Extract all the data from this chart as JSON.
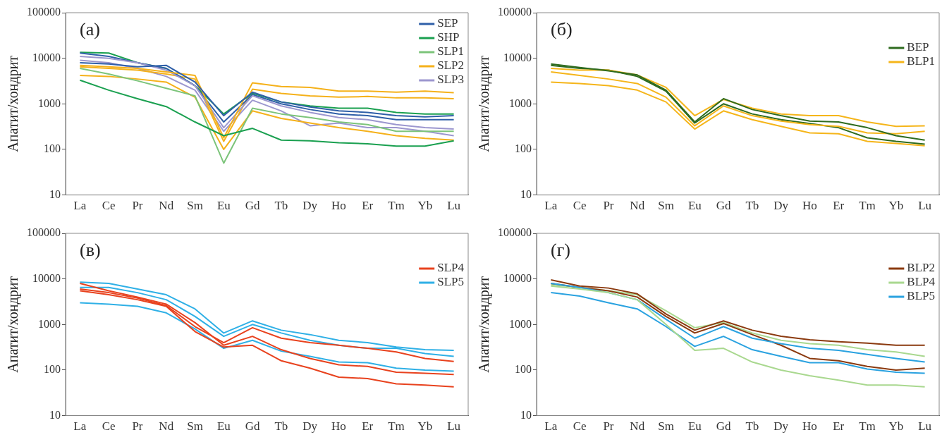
{
  "chart_data": [
    {
      "type": "line",
      "annotations": [
        "(a)"
      ],
      "ylabel": "Апатит/хондрит",
      "log": true,
      "ylim": [
        10,
        100000
      ],
      "yticks": [
        10,
        100,
        1000,
        10000,
        100000
      ],
      "grid": false,
      "legend": "top right",
      "marker": "none",
      "line_style": "solid",
      "categories": [
        "La",
        "Ce",
        "Pr",
        "Nd",
        "Sm",
        "Eu",
        "Gd",
        "Tb",
        "Dy",
        "Ho",
        "Er",
        "Tm",
        "Yb",
        "Lu"
      ],
      "series": [
        {
          "name": "SEP",
          "color": "#2f5fa8",
          "values": [
            8000,
            7500,
            6500,
            7000,
            3000,
            550,
            1800,
            1100,
            850,
            700,
            650,
            550,
            520,
            550
          ]
        },
        {
          "name": "SHP",
          "color": "#1aa050",
          "values": [
            3300,
            2000,
            1300,
            870,
            400,
            200,
            290,
            160,
            155,
            140,
            133,
            118,
            118,
            155
          ]
        },
        {
          "name": "SLP1",
          "color": "#7cc47a",
          "values": [
            6000,
            4500,
            3200,
            2200,
            1500,
            50,
            800,
            600,
            500,
            400,
            350,
            250,
            250,
            250
          ]
        },
        {
          "name": "SLP2",
          "color": "#f5b11a",
          "values": [
            7000,
            6500,
            6000,
            5000,
            4200,
            180,
            2900,
            2400,
            2300,
            1900,
            1900,
            1800,
            1900,
            1750
          ]
        },
        {
          "name": "SLP3",
          "color": "#9c97cf",
          "values": [
            11000,
            10000,
            8000,
            5500,
            2500,
            300,
            1500,
            900,
            650,
            500,
            450,
            350,
            300,
            280
          ]
        },
        {
          "color": "#2f5fa8",
          "values": [
            13000,
            11000,
            8000,
            6000,
            2500,
            400,
            1600,
            1000,
            750,
            600,
            550,
            450,
            450,
            450
          ]
        },
        {
          "color": "#1aa050",
          "values": [
            13500,
            13000,
            8000,
            6000,
            2500,
            600,
            1700,
            1100,
            900,
            800,
            800,
            650,
            600,
            600
          ]
        },
        {
          "color": "#f5b11a",
          "values": [
            4200,
            4000,
            3500,
            3000,
            1400,
            100,
            700,
            480,
            380,
            300,
            250,
            200,
            175,
            160
          ]
        },
        {
          "color": "#f5b11a",
          "values": [
            6500,
            6000,
            5500,
            4500,
            3500,
            150,
            2100,
            1700,
            1500,
            1400,
            1450,
            1350,
            1350,
            1300
          ]
        },
        {
          "color": "#9c97cf",
          "values": [
            9000,
            8000,
            6000,
            4000,
            2000,
            250,
            1200,
            700,
            330,
            380,
            300,
            300,
            250,
            200
          ]
        }
      ]
    },
    {
      "type": "line",
      "annotations": [
        "(б)"
      ],
      "ylabel": "Апатит/хондрит",
      "log": true,
      "ylim": [
        10,
        100000
      ],
      "yticks": [
        10,
        100,
        1000,
        10000,
        100000
      ],
      "grid": false,
      "legend": "top right",
      "marker": "none",
      "line_style": "solid",
      "categories": [
        "La",
        "Ce",
        "Pr",
        "Nd",
        "Sm",
        "Eu",
        "Gd",
        "Tb",
        "Dy",
        "Ho",
        "Er",
        "Tm",
        "Yb",
        "Lu"
      ],
      "series": [
        {
          "name": "BEP",
          "color": "#2e6b1f",
          "values": [
            7500,
            6300,
            5300,
            4300,
            2000,
            400,
            1300,
            750,
            550,
            420,
            400,
            300,
            200,
            160
          ]
        },
        {
          "name": "BLP1",
          "color": "#f5b51a",
          "values": [
            3000,
            2800,
            2500,
            2000,
            1100,
            280,
            700,
            450,
            320,
            230,
            220,
            150,
            135,
            120
          ]
        },
        {
          "color": "#f5b51a",
          "values": [
            6000,
            5500,
            5500,
            4300,
            2300,
            550,
            1250,
            800,
            600,
            550,
            550,
            400,
            320,
            330
          ]
        },
        {
          "color": "#f5b51a",
          "values": [
            5000,
            4200,
            3500,
            2800,
            1400,
            330,
            900,
            550,
            420,
            350,
            320,
            230,
            220,
            250
          ]
        },
        {
          "color": "#2e6b1f",
          "values": [
            7000,
            6000,
            5500,
            4000,
            1900,
            380,
            1000,
            600,
            450,
            370,
            300,
            180,
            150,
            130
          ]
        }
      ]
    },
    {
      "type": "line",
      "annotations": [
        "(в)"
      ],
      "ylabel": "Апатит/хондрит",
      "log": true,
      "ylim": [
        10,
        100000
      ],
      "yticks": [
        10,
        100,
        1000,
        10000,
        100000
      ],
      "grid": false,
      "legend": "top right",
      "marker": "none",
      "line_style": "solid",
      "categories": [
        "La",
        "Ce",
        "Pr",
        "Nd",
        "Sm",
        "Eu",
        "Gd",
        "Tb",
        "Dy",
        "Ho",
        "Er",
        "Tm",
        "Yb",
        "Lu"
      ],
      "series": [
        {
          "name": "SLP4",
          "color": "#e8421e",
          "values": [
            8000,
            5500,
            4000,
            2800,
            1100,
            350,
            550,
            280,
            180,
            130,
            120,
            90,
            85,
            80
          ]
        },
        {
          "name": "SLP5",
          "color": "#2fb0e6",
          "values": [
            8500,
            8000,
            6000,
            4500,
            2200,
            650,
            1200,
            750,
            600,
            450,
            400,
            320,
            280,
            270
          ]
        },
        {
          "color": "#e8421e",
          "values": [
            5500,
            4500,
            3500,
            2500,
            700,
            320,
            350,
            160,
            110,
            70,
            65,
            50,
            47,
            43
          ]
        },
        {
          "color": "#e8421e",
          "values": [
            6000,
            5000,
            3800,
            2600,
            900,
            400,
            850,
            500,
            400,
            350,
            300,
            250,
            180,
            155
          ]
        },
        {
          "color": "#2fb0e6",
          "values": [
            3000,
            2800,
            2500,
            1800,
            800,
            300,
            450,
            260,
            200,
            150,
            145,
            110,
            100,
            95
          ]
        },
        {
          "color": "#2fb0e6",
          "values": [
            6500,
            6500,
            5000,
            3500,
            1500,
            550,
            1000,
            650,
            450,
            350,
            300,
            300,
            230,
            200
          ]
        }
      ]
    },
    {
      "type": "line",
      "annotations": [
        "(г)"
      ],
      "ylabel": "Апатит/хондрит",
      "log": true,
      "ylim": [
        10,
        100000
      ],
      "yticks": [
        10,
        100,
        1000,
        10000,
        100000
      ],
      "grid": false,
      "legend": "top right",
      "marker": "none",
      "line_style": "solid",
      "categories": [
        "La",
        "Ce",
        "Pr",
        "Nd",
        "Sm",
        "Eu",
        "Gd",
        "Tb",
        "Dy",
        "Ho",
        "Er",
        "Tm",
        "Yb",
        "Lu"
      ],
      "series": [
        {
          "name": "BLP2",
          "color": "#8b3a0f",
          "values": [
            9500,
            7000,
            6300,
            4700,
            1700,
            750,
            1200,
            750,
            550,
            460,
            420,
            390,
            350,
            350
          ]
        },
        {
          "name": "BLP4",
          "color": "#a9d88f",
          "values": [
            7000,
            6000,
            5000,
            3500,
            1000,
            270,
            300,
            150,
            100,
            75,
            60,
            47,
            47,
            43
          ]
        },
        {
          "name": "BLP5",
          "color": "#2aa2e0",
          "values": [
            8000,
            6500,
            5000,
            3500,
            1300,
            500,
            900,
            500,
            380,
            300,
            270,
            220,
            180,
            150
          ]
        },
        {
          "color": "#8b3a0f",
          "values": [
            8000,
            6500,
            5500,
            4000,
            1500,
            650,
            1050,
            600,
            350,
            180,
            160,
            120,
            100,
            110
          ]
        },
        {
          "color": "#a9d88f",
          "values": [
            7500,
            6500,
            5500,
            4500,
            2000,
            850,
            1100,
            650,
            450,
            380,
            350,
            280,
            250,
            200
          ]
        },
        {
          "color": "#2aa2e0",
          "values": [
            5000,
            4200,
            3000,
            2200,
            900,
            330,
            550,
            280,
            200,
            145,
            145,
            105,
            90,
            85
          ]
        }
      ]
    }
  ]
}
